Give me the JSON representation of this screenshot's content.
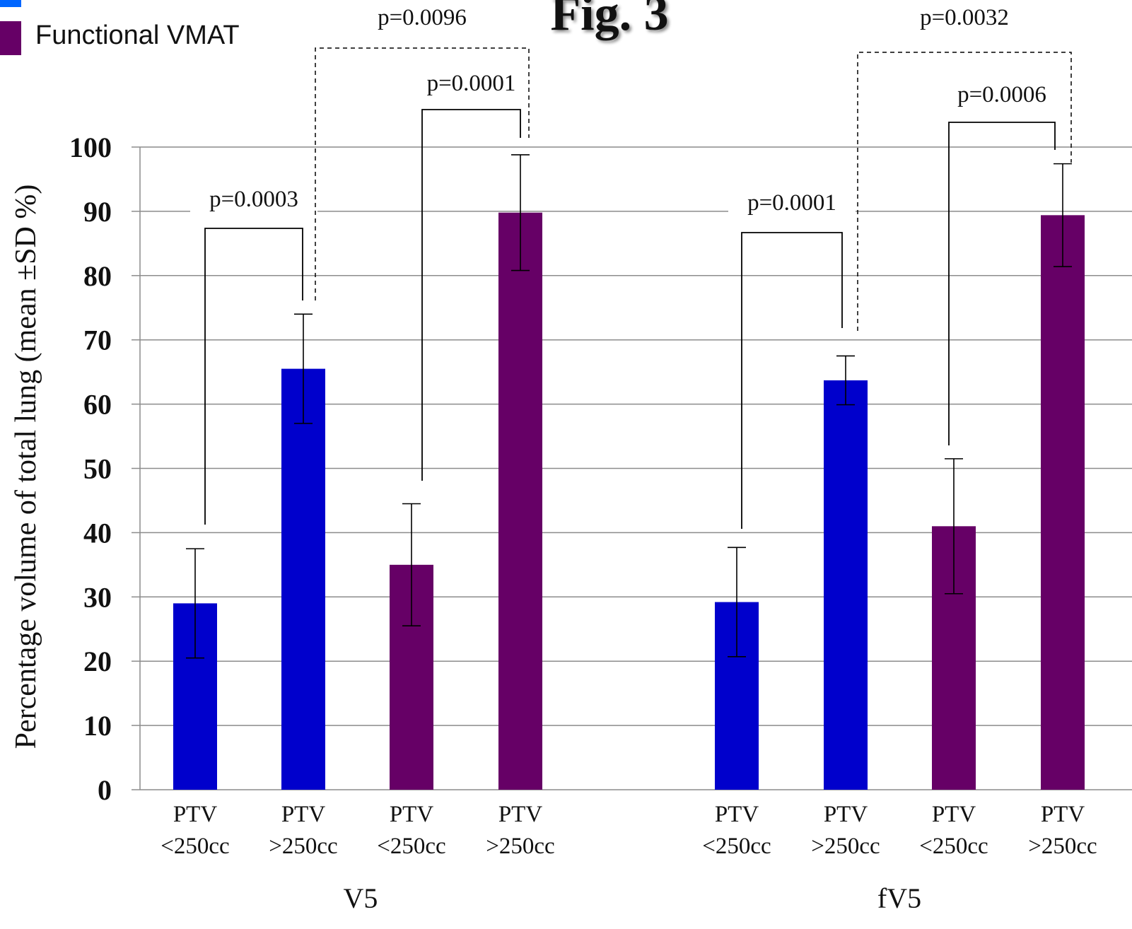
{
  "figure_title": "Fig. 3",
  "legend": {
    "items": [
      {
        "label": "",
        "color": "#0000cc",
        "swatch": "blue-square"
      },
      {
        "label": "Functional VMAT",
        "color": "#660066",
        "swatch": "purple-square"
      }
    ]
  },
  "chart_data": {
    "type": "bar",
    "title": "",
    "ylabel": "Percentage volume of total lung (mean ±SD %)",
    "xlabel": "",
    "ylim": [
      0,
      100
    ],
    "yticks": [
      0,
      10,
      20,
      30,
      40,
      50,
      60,
      70,
      80,
      90,
      100
    ],
    "grid": true,
    "groups": [
      {
        "name": "V5",
        "bars": [
          {
            "category": [
              "PTV",
              "<250cc"
            ],
            "value": 29,
            "sd": 8.5,
            "color": "#0000cc"
          },
          {
            "category": [
              "PTV",
              ">250cc"
            ],
            "value": 65.5,
            "sd": 8.5,
            "color": "#0000cc"
          },
          {
            "category": [
              "PTV",
              "<250cc"
            ],
            "value": 35,
            "sd": 9.5,
            "color": "#660066"
          },
          {
            "category": [
              "PTV",
              ">250cc"
            ],
            "value": 89.8,
            "sd": 9,
            "color": "#660066"
          }
        ]
      },
      {
        "name": "fV5",
        "bars": [
          {
            "category": [
              "PTV",
              "<250cc"
            ],
            "value": 29.2,
            "sd": 8.5,
            "color": "#0000cc"
          },
          {
            "category": [
              "PTV",
              ">250cc"
            ],
            "value": 63.7,
            "sd": 3.8,
            "color": "#0000cc"
          },
          {
            "category": [
              "PTV",
              "<250cc"
            ],
            "value": 41,
            "sd": 10.5,
            "color": "#660066"
          },
          {
            "category": [
              "PTV",
              ">250cc"
            ],
            "value": 89.4,
            "sd": 8,
            "color": "#660066"
          }
        ]
      }
    ],
    "annotations": [
      {
        "text": "p=0.0003",
        "from": [
          0,
          0
        ],
        "to": [
          0,
          1
        ],
        "style": "solid"
      },
      {
        "text": "p=0.0001",
        "from": [
          0,
          2
        ],
        "to": [
          0,
          3
        ],
        "style": "solid"
      },
      {
        "text": "p=0.0096",
        "from": [
          0,
          1
        ],
        "to": [
          0,
          3
        ],
        "style": "dashed"
      },
      {
        "text": "p=0.0001",
        "from": [
          1,
          0
        ],
        "to": [
          1,
          1
        ],
        "style": "solid"
      },
      {
        "text": "p=0.0006",
        "from": [
          1,
          2
        ],
        "to": [
          1,
          3
        ],
        "style": "solid"
      },
      {
        "text": "p=0.0032",
        "from": [
          1,
          1
        ],
        "to": [
          1,
          3
        ],
        "style": "dashed"
      }
    ]
  }
}
